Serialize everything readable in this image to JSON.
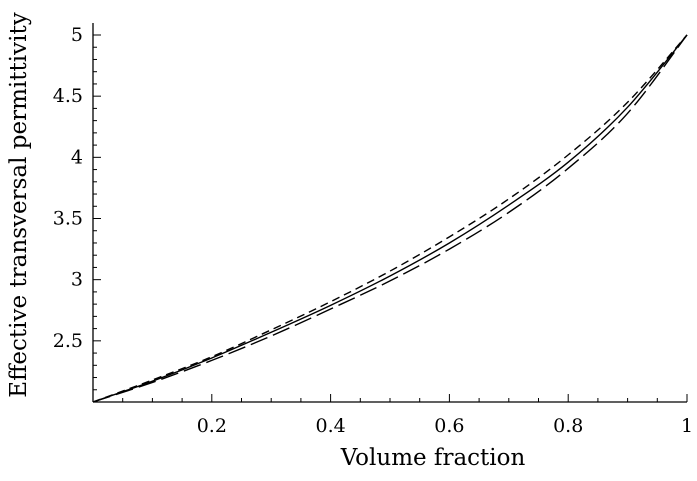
{
  "chart_data": {
    "type": "line",
    "title": "",
    "xlabel": "Volume fraction",
    "ylabel": "Effective transversal permittivity",
    "xlim": [
      0,
      1
    ],
    "ylim": [
      2,
      5
    ],
    "x_ticks": [
      0.2,
      0.4,
      0.6,
      0.8,
      1
    ],
    "x_tick_labels": [
      "0.2",
      "0.4",
      "0.6",
      "0.8",
      "1"
    ],
    "y_ticks": [
      2.5,
      3,
      3.5,
      4,
      4.5,
      5
    ],
    "y_tick_labels": [
      "2.5",
      "3",
      "3.5",
      "4",
      "4.5",
      "5"
    ],
    "grid": false,
    "legend": "none",
    "x": [
      0,
      0.1,
      0.2,
      0.3,
      0.4,
      0.5,
      0.6,
      0.7,
      0.8,
      0.9,
      1.0
    ],
    "series": [
      {
        "style": "solid",
        "color": "#000000",
        "values": [
          2.0,
          2.17,
          2.36,
          2.57,
          2.79,
          3.03,
          3.3,
          3.61,
          3.96,
          4.41,
          5.0
        ]
      },
      {
        "style": "short-dash",
        "color": "#000000",
        "values": [
          2.0,
          2.18,
          2.37,
          2.59,
          2.82,
          3.07,
          3.35,
          3.66,
          4.02,
          4.45,
          5.0
        ]
      },
      {
        "style": "long-dash",
        "color": "#000000",
        "values": [
          2.0,
          2.16,
          2.34,
          2.54,
          2.76,
          2.99,
          3.25,
          3.55,
          3.91,
          4.36,
          5.0
        ]
      }
    ]
  }
}
